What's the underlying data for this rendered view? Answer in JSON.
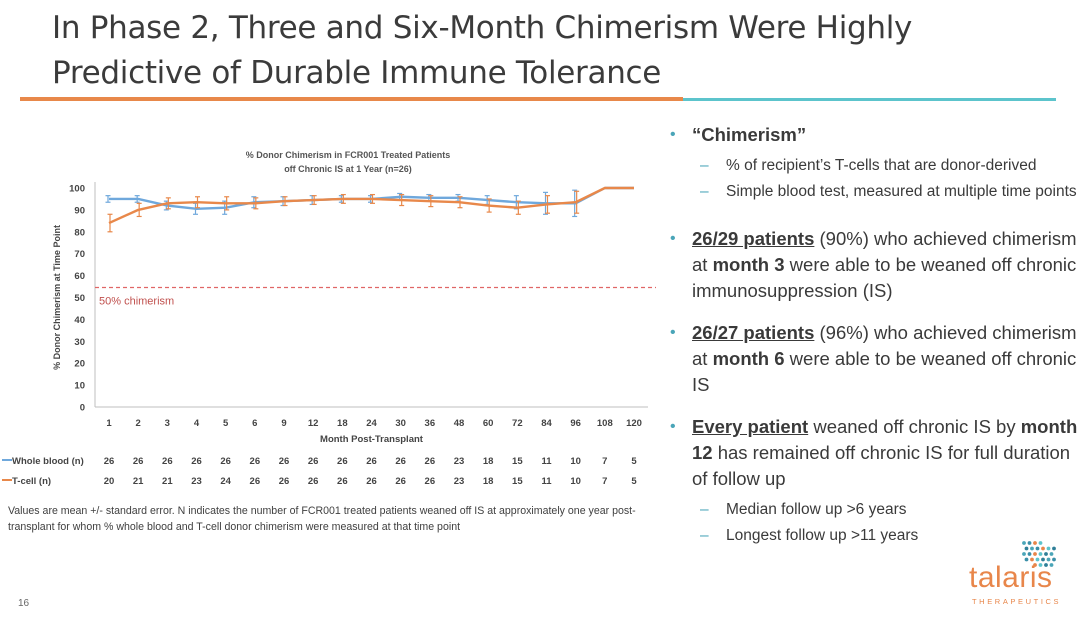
{
  "slide": {
    "title_line1": "In Phase 2, Three and Six-Month Chimerism Were Highly",
    "title_line2": "Predictive of Durable Immune Tolerance",
    "footnote": "Values are mean +/- standard error. N indicates the number of FCR001 treated patients weaned off IS at approximately one year post-transplant for whom % whole blood and T-cell donor chimerism were measured at that time point",
    "page_number": "16",
    "accent_colors": {
      "orange": "#e8884a",
      "teal": "#5cc4cc",
      "blue": "#6fa8dc"
    }
  },
  "bullets": [
    {
      "parts": [
        {
          "text": "“Chimerism”",
          "style": "bold"
        }
      ],
      "sub": [
        "% of recipient’s T-cells that are donor-derived",
        "Simple blood test, measured at multiple time points"
      ]
    },
    {
      "parts": [
        {
          "text": "26/29 patients",
          "style": "underline-bold"
        },
        {
          "text": " (90%) who achieved chimerism at ",
          "style": "normal"
        },
        {
          "text": "month 3",
          "style": "bold"
        },
        {
          "text": " were able to be weaned off chronic immunosuppression (IS)",
          "style": "normal"
        }
      ],
      "sub": []
    },
    {
      "parts": [
        {
          "text": "26/27 patients",
          "style": "underline-bold"
        },
        {
          "text": " (96%) who achieved chimerism at ",
          "style": "normal"
        },
        {
          "text": "month 6",
          "style": "bold"
        },
        {
          "text": " were able to be weaned off chronic IS",
          "style": "normal"
        }
      ],
      "sub": []
    },
    {
      "parts": [
        {
          "text": "Every patient",
          "style": "underline-bold"
        },
        {
          "text": " weaned off chronic IS by ",
          "style": "normal"
        },
        {
          "text": "month 12",
          "style": "bold"
        },
        {
          "text": " has remained off chronic IS for full duration of follow up",
          "style": "normal"
        }
      ],
      "sub": [
        "Median follow up >6 years",
        "Longest follow up >11 years"
      ]
    }
  ],
  "logo": {
    "name": "talaris",
    "subtitle": "THERAPEUTICS"
  },
  "chart_data": {
    "type": "line",
    "title": "% Donor Chimerism in FCR001 Treated Patients off Chronic IS at 1 Year (n=26)",
    "title_line1": "% Donor Chimerism in FCR001 Treated Patients",
    "title_line2": "off Chronic IS at 1 Year (n=26)",
    "xlabel": "Month Post-Transplant",
    "ylabel": "% Donor Chimerism at Time Point",
    "ylim": [
      0,
      100
    ],
    "yticks": [
      0,
      10,
      20,
      30,
      40,
      50,
      60,
      70,
      80,
      90,
      100
    ],
    "categories": [
      "1",
      "2",
      "3",
      "4",
      "5",
      "6",
      "9",
      "12",
      "18",
      "24",
      "30",
      "36",
      "48",
      "60",
      "72",
      "84",
      "96",
      "108",
      "120"
    ],
    "series": [
      {
        "name": "Whole blood (n)",
        "color": "#6fa8dc",
        "values": [
          95,
          95,
          92,
          90.5,
          91,
          93.5,
          94,
          94.5,
          95,
          95,
          96,
          95.5,
          95.5,
          94.5,
          93.5,
          93,
          93,
          100,
          100
        ],
        "errors": [
          1.5,
          1.5,
          2,
          2.5,
          3,
          2.5,
          2,
          2,
          1.5,
          1.5,
          1.5,
          1.5,
          1.5,
          2,
          3,
          5,
          6,
          0,
          0
        ],
        "n": [
          "26",
          "26",
          "26",
          "26",
          "26",
          "26",
          "26",
          "26",
          "26",
          "26",
          "26",
          "26",
          "23",
          "18",
          "15",
          "11",
          "10",
          "7",
          "5"
        ]
      },
      {
        "name": "T-cell (n)",
        "color": "#e8884a",
        "values": [
          84,
          90,
          93,
          93.5,
          93,
          93,
          94,
          94.5,
          95,
          95,
          94.5,
          94,
          93.5,
          92,
          91,
          92.5,
          93.5,
          100,
          100
        ],
        "errors": [
          4,
          3,
          2.5,
          2.5,
          3,
          2.5,
          2,
          2,
          2,
          2,
          2.5,
          2.5,
          2.5,
          3,
          3,
          4,
          5,
          0,
          0
        ],
        "n": [
          "20",
          "21",
          "21",
          "23",
          "24",
          "26",
          "26",
          "26",
          "26",
          "26",
          "26",
          "26",
          "23",
          "18",
          "15",
          "11",
          "10",
          "7",
          "5"
        ]
      }
    ],
    "reference_line": {
      "value": 50,
      "label": "50% chimerism",
      "color": "#e06666"
    },
    "grid": false,
    "legend": "table-below-axis"
  }
}
